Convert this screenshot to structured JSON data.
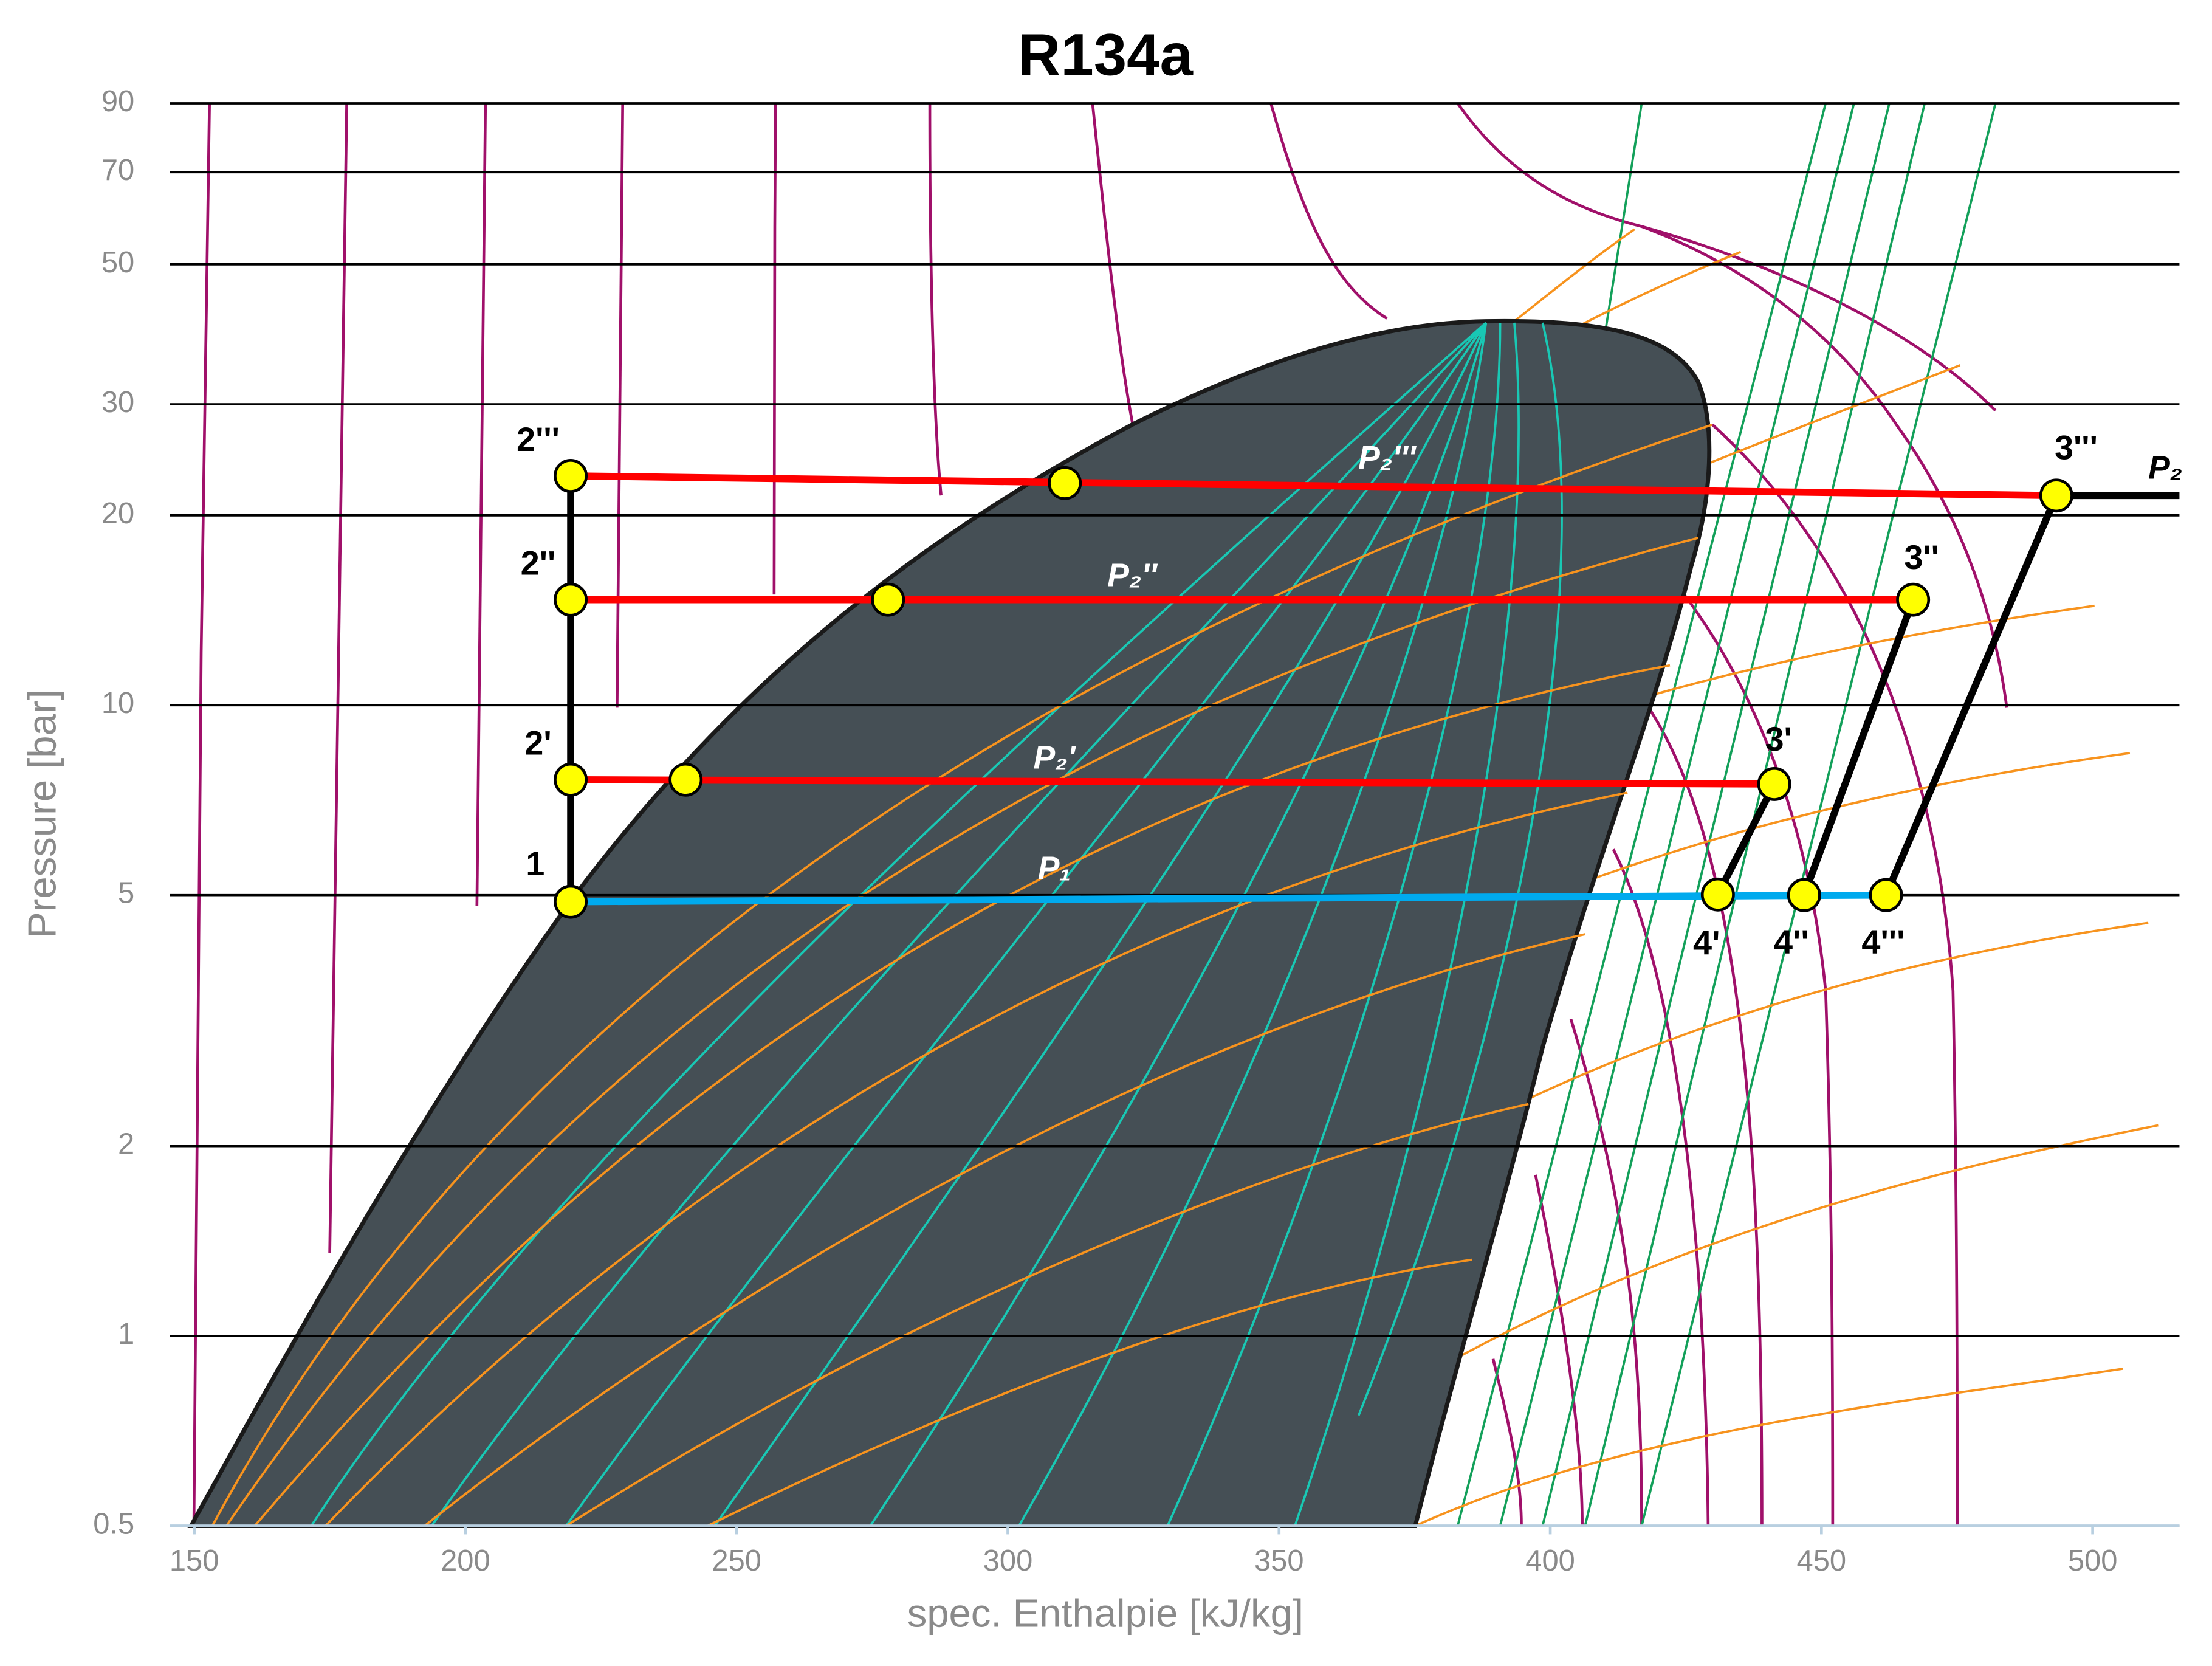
{
  "chart_data": {
    "type": "line",
    "title": "R134a",
    "xlabel": "spec. Enthalpie [kJ/kg]",
    "ylabel": "Pressure [bar]",
    "xlim": [
      145.5,
      516
    ],
    "ylim": [
      0.5,
      90
    ],
    "ylog": true,
    "xticks": [
      150,
      200,
      250,
      300,
      350,
      400,
      450,
      500
    ],
    "yticks": [
      0.5,
      1,
      2,
      5,
      10,
      20,
      30,
      50,
      70,
      90
    ],
    "grid": true,
    "points": {
      "labels": [
        "1",
        "2'",
        "2''",
        "2'''",
        "3'",
        "3''",
        "3'''",
        "4'",
        "4''",
        "4'''",
        null,
        null,
        null
      ],
      "x": [
        219.4,
        219.4,
        219.4,
        219.4,
        441.3,
        466.9,
        493.3,
        430.9,
        446.8,
        461.9,
        240.6,
        277.9,
        310.5
      ],
      "y": [
        4.88,
        7.62,
        14.7,
        23.1,
        7.5,
        14.7,
        21.5,
        5.01,
        5.0,
        5.0,
        7.62,
        14.7,
        22.5
      ],
      "color": "#ffff00"
    },
    "lines": [
      {
        "label": "P₁",
        "color": "#00aaee",
        "x": [
          219.4,
          461.9
        ],
        "y": [
          4.88,
          5.0
        ]
      },
      {
        "label": "P₂'",
        "color": "#ff0000",
        "x": [
          219.4,
          441.3
        ],
        "y": [
          7.62,
          7.5
        ]
      },
      {
        "label": "P₂''",
        "color": "#ff0000",
        "x": [
          219.4,
          466.9
        ],
        "y": [
          14.7,
          14.7
        ]
      },
      {
        "label": "P₂'''",
        "color": "#ff0000",
        "x": [
          219.4,
          493.3
        ],
        "y": [
          23.1,
          21.5
        ]
      },
      {
        "label": "P₂",
        "color": "#000000",
        "x": [
          493.3,
          516
        ],
        "y": [
          21.5,
          21.5
        ]
      },
      {
        "color": "#000000",
        "x": [
          219.4,
          219.4
        ],
        "y": [
          4.88,
          23.1
        ]
      },
      {
        "color": "#000000",
        "x": [
          430.9,
          441.3
        ],
        "y": [
          5.01,
          7.5
        ]
      },
      {
        "color": "#000000",
        "x": [
          446.8,
          466.9
        ],
        "y": [
          5.0,
          14.7
        ]
      },
      {
        "color": "#000000",
        "x": [
          461.9,
          493.3
        ],
        "y": [
          5.0,
          21.5
        ]
      }
    ]
  }
}
